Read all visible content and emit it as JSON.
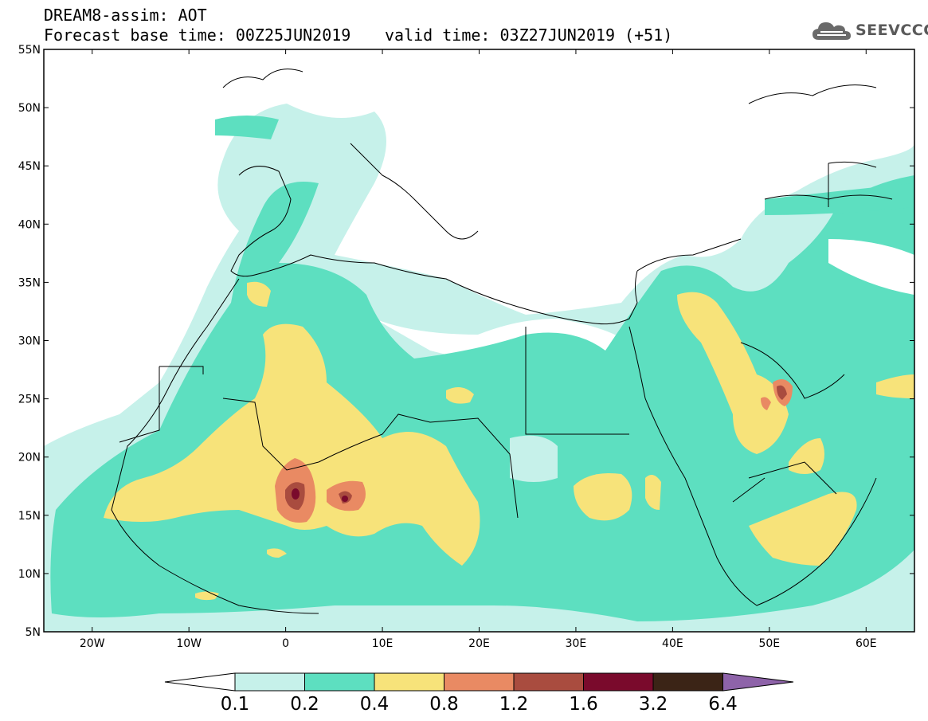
{
  "header": {
    "model_product": "DREAM8-assim: AOT",
    "base_time": "Forecast base time: 00Z25JUN2019",
    "valid_time": "valid time: 03Z27JUN2019 (+51)"
  },
  "logo": {
    "text": "SEEVCCC",
    "icon": "cloud-icon"
  },
  "map": {
    "extent": {
      "lon_min": -25,
      "lon_max": 65,
      "lat_min": 5,
      "lat_max": 55
    },
    "lon_ticks": [
      {
        "value": -20,
        "label": "20W"
      },
      {
        "value": -10,
        "label": "10W"
      },
      {
        "value": 0,
        "label": "0"
      },
      {
        "value": 10,
        "label": "10E"
      },
      {
        "value": 20,
        "label": "20E"
      },
      {
        "value": 30,
        "label": "30E"
      },
      {
        "value": 40,
        "label": "40E"
      },
      {
        "value": 50,
        "label": "50E"
      },
      {
        "value": 60,
        "label": "60E"
      }
    ],
    "lat_ticks": [
      {
        "value": 5,
        "label": "5N"
      },
      {
        "value": 10,
        "label": "10N"
      },
      {
        "value": 15,
        "label": "15N"
      },
      {
        "value": 20,
        "label": "20N"
      },
      {
        "value": 25,
        "label": "25N"
      },
      {
        "value": 30,
        "label": "30N"
      },
      {
        "value": 35,
        "label": "35N"
      },
      {
        "value": 40,
        "label": "40N"
      },
      {
        "value": 45,
        "label": "45N"
      },
      {
        "value": 50,
        "label": "50N"
      },
      {
        "value": 55,
        "label": "55N"
      }
    ]
  },
  "colorbar": {
    "colors": {
      "below": "#ffffff",
      "c1": "#c6f1ea",
      "c2": "#5ddfc0",
      "c3": "#f7e37a",
      "c4": "#e98a63",
      "c5": "#a94c3f",
      "c6": "#7a0a2c",
      "c7": "#3b2416",
      "above": "#8e63a9"
    },
    "levels": [
      "0.1",
      "0.2",
      "0.4",
      "0.8",
      "1.2",
      "1.6",
      "3.2",
      "6.4"
    ]
  }
}
